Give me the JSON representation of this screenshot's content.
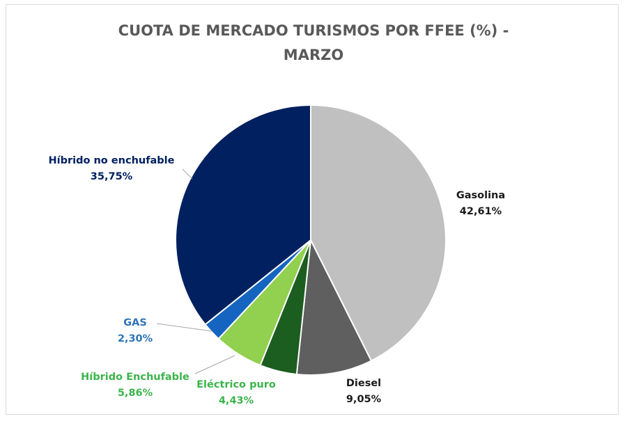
{
  "chart_data": {
    "type": "pie",
    "title_line1": "CUOTA DE MERCADO TURISMOS POR FFEE (%)  -",
    "title_line2": "MARZO",
    "start_angle_deg": 0,
    "direction": "clockwise",
    "legend": "none",
    "slices": [
      {
        "name": "Gasolina",
        "value": 42.61,
        "value_label": "42,61%",
        "color": "#c0c0c0",
        "label_color": "#1a1a1a"
      },
      {
        "name": "Diesel",
        "value": 9.05,
        "value_label": "9,05%",
        "color": "#5f5f5f",
        "label_color": "#1a1a1a"
      },
      {
        "name": "Eléctrico puro",
        "value": 4.43,
        "value_label": "4,43%",
        "color": "#1b5e20",
        "label_color": "#3cb44b"
      },
      {
        "name": "Híbrido Enchufable",
        "value": 5.86,
        "value_label": "5,86%",
        "color": "#92d050",
        "label_color": "#3cb44b"
      },
      {
        "name": "GAS",
        "value": 2.3,
        "value_label": "2,30%",
        "color": "#1565c0",
        "label_color": "#2e75b6"
      },
      {
        "name": "Híbrido no enchufable",
        "value": 35.75,
        "value_label": "35,75%",
        "color": "#002060",
        "label_color": "#002060"
      }
    ]
  }
}
